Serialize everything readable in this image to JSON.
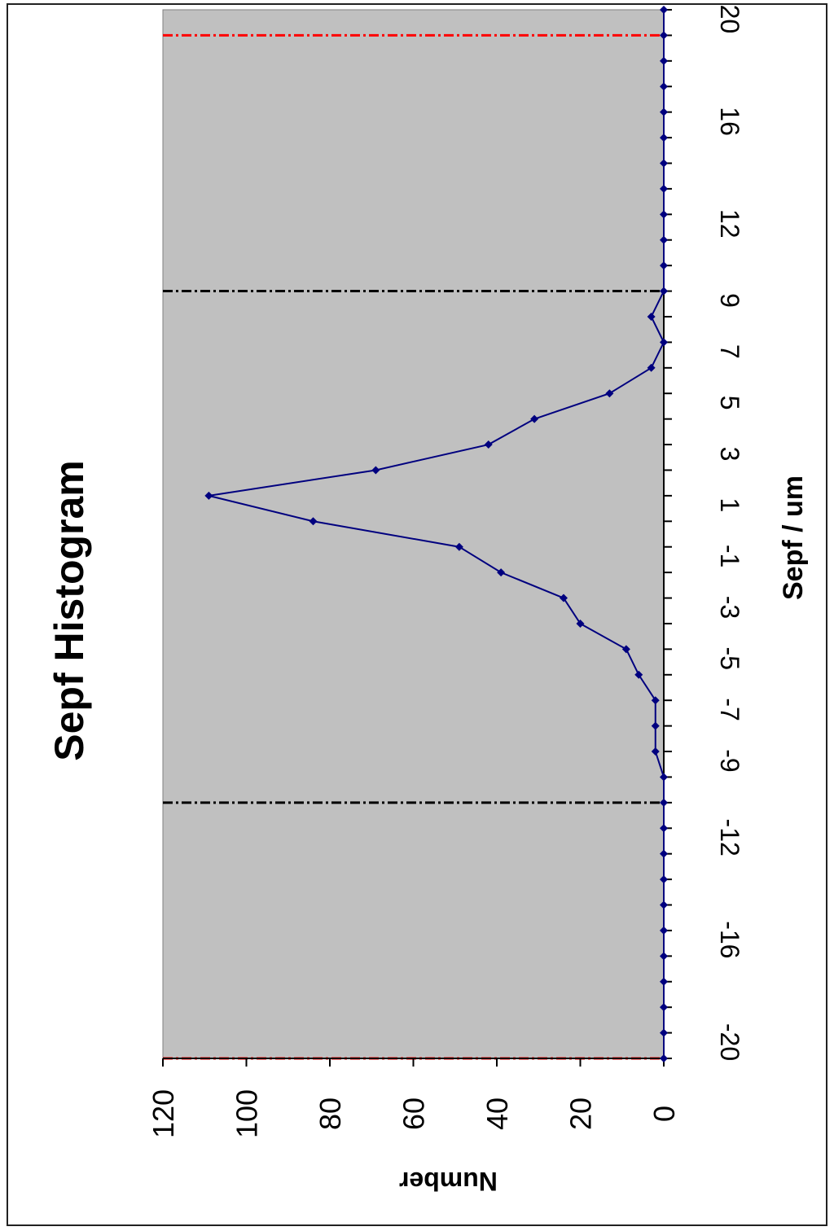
{
  "chart_data": {
    "type": "line",
    "title": "Sepf Histogram",
    "xlabel": "Sepf / um",
    "ylabel": "Number",
    "x": [
      -20,
      -19,
      -18,
      -17,
      -16,
      -15,
      -14,
      -13,
      -12,
      -11,
      -10,
      -9,
      -8,
      -7,
      -6,
      -5,
      -4,
      -3,
      -2,
      -1,
      0,
      1,
      2,
      3,
      4,
      5,
      6,
      7,
      8,
      9,
      10,
      11,
      12,
      13,
      14,
      15,
      16,
      17,
      18,
      19,
      20,
      21
    ],
    "x_tick_labels": [
      "-20",
      "-16",
      "-12",
      "-9",
      "-7",
      "-5",
      "-3",
      "-1",
      "1",
      "3",
      "5",
      "7",
      "9",
      "12",
      "16",
      "20"
    ],
    "x_tick_values": [
      -20,
      -16,
      -12,
      -9,
      -7,
      -5,
      -3,
      -1,
      1,
      3,
      5,
      7,
      9,
      12,
      16,
      20
    ],
    "series": [
      {
        "color": "#00007f",
        "values": [
          0,
          0,
          0,
          0,
          0,
          0,
          0,
          0,
          0,
          0,
          0,
          0,
          2,
          2,
          2,
          6,
          9,
          20,
          24,
          39,
          49,
          84,
          109,
          69,
          42,
          31,
          13,
          3,
          0,
          3,
          0,
          0,
          0,
          0,
          0,
          0,
          0,
          0,
          0,
          0,
          0,
          0
        ]
      }
    ],
    "ylim": [
      0,
      120
    ],
    "y_ticks": [
      0,
      20,
      40,
      60,
      80,
      100,
      120
    ],
    "reference_lines": [
      {
        "x": -20,
        "color": "#ff0000"
      },
      {
        "x": -10,
        "color": "#000000"
      },
      {
        "x": 10,
        "color": "#000000"
      },
      {
        "x": 20,
        "color": "#ff0000"
      }
    ],
    "orientation": "rotated-90",
    "plot_background": "#c0c0c0",
    "grid": false,
    "legend": "none"
  }
}
